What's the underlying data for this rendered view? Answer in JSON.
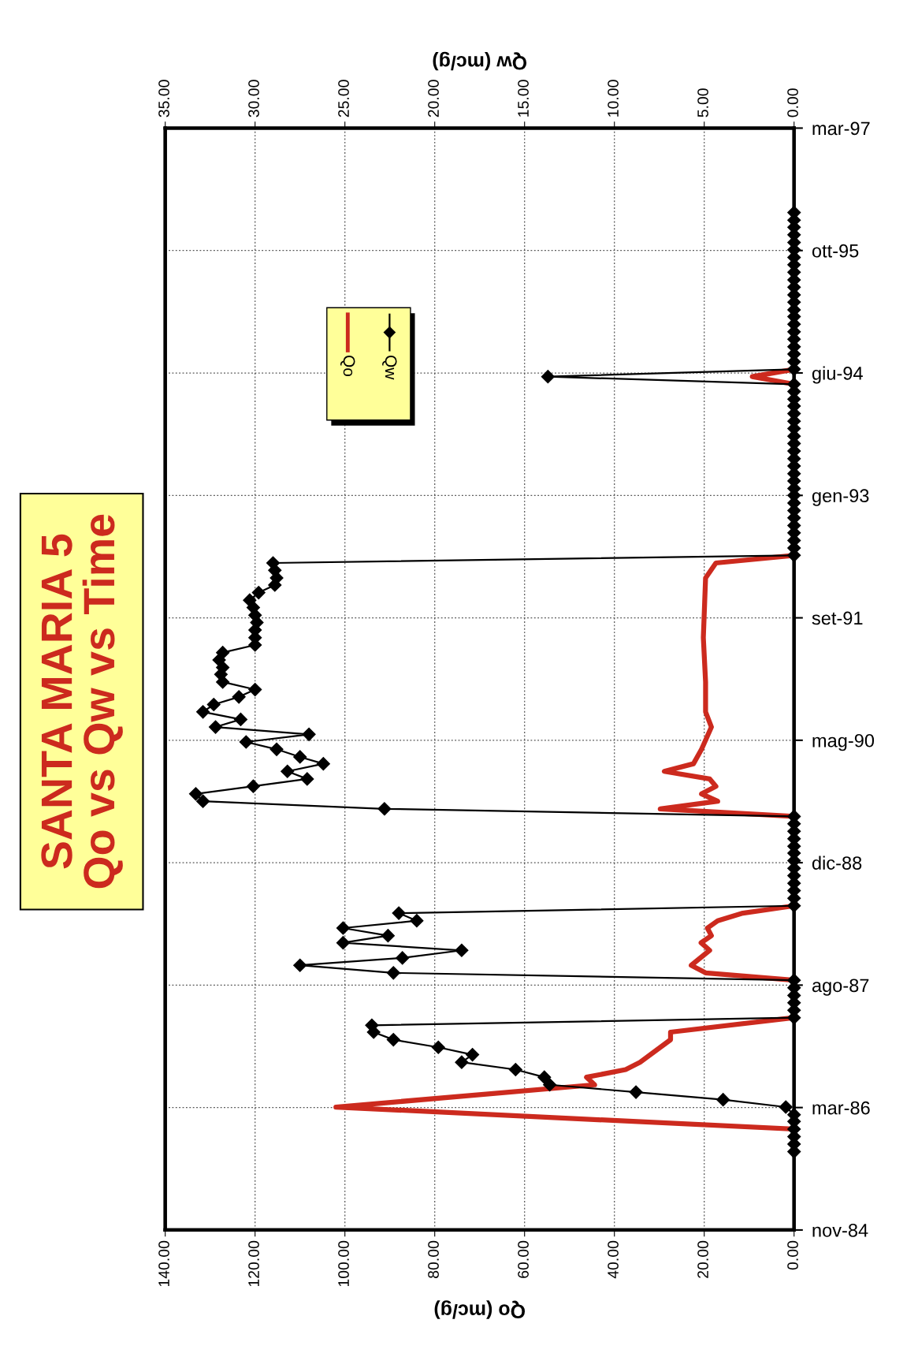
{
  "chart_data": {
    "type": "line",
    "orientation": "horizontal",
    "title": "SANTA MARIA 5\nQo vs Qw vs Time",
    "xlabel": "Qo (mc/g)",
    "x2label": "Qw (mc/g)",
    "ylim": [
      "1984-11-15",
      "1997-03-12"
    ],
    "yticks": [
      {
        "value": "1984-11-15",
        "label": "nov-84"
      },
      {
        "value": "1986-03-30",
        "label": "mar-86"
      },
      {
        "value": "1987-08-12",
        "label": "ago-87"
      },
      {
        "value": "1988-12-24",
        "label": "dic-88"
      },
      {
        "value": "1990-05-08",
        "label": "mag-90"
      },
      {
        "value": "1991-09-20",
        "label": "set-91"
      },
      {
        "value": "1993-02-01",
        "label": "gen-93"
      },
      {
        "value": "1994-06-16",
        "label": "giu-94"
      },
      {
        "value": "1995-10-29",
        "label": "ott-95"
      },
      {
        "value": "1997-03-12",
        "label": "mar-97"
      }
    ],
    "xlim": [
      140,
      0
    ],
    "xticks": [
      {
        "value": 0,
        "label": "0.00"
      },
      {
        "value": 20,
        "label": "20.00"
      },
      {
        "value": 40,
        "label": "40.00"
      },
      {
        "value": 60,
        "label": "60.00"
      },
      {
        "value": 80,
        "label": "80.00"
      },
      {
        "value": 100,
        "label": "100.00"
      },
      {
        "value": 120,
        "label": "120.00"
      },
      {
        "value": 140,
        "label": "140.00"
      }
    ],
    "x2lim": [
      35,
      0
    ],
    "x2ticks": [
      {
        "value": 0,
        "label": "0.00"
      },
      {
        "value": 5,
        "label": "5.00"
      },
      {
        "value": 10,
        "label": "10.00"
      },
      {
        "value": 15,
        "label": "15.00"
      },
      {
        "value": 20,
        "label": "20.00"
      },
      {
        "value": 25,
        "label": "25.00"
      },
      {
        "value": 30,
        "label": "30.00"
      },
      {
        "value": 35,
        "label": "35.00"
      }
    ],
    "grid": true,
    "legend": "top left",
    "line_style": "solid",
    "series": [
      {
        "name": "Qo",
        "color": "#cc2a1e",
        "marker": "none",
        "x": [
          "1986-01",
          "1986-04",
          "1986-07",
          "1986-08",
          "1986-09",
          "1986-10",
          "1987-01",
          "1987-02",
          "1987-04",
          "1987-09",
          "1987-10",
          "1987-11",
          "1988-01",
          "1988-02",
          "1988-03",
          "1988-04",
          "1988-05",
          "1988-06",
          "1988-07",
          "1989-07",
          "1989-08",
          "1989-09",
          "1989-10",
          "1989-11",
          "1989-12",
          "1990-01",
          "1990-02",
          "1990-04",
          "1990-07",
          "1990-09",
          "1991-01",
          "1991-07",
          "1992-03",
          "1992-05",
          "1992-06",
          "1994-05",
          "1994-06",
          "1994-07"
        ],
        "values": [
          0,
          102,
          44.4,
          46.2,
          37.5,
          34.3,
          27.5,
          27.5,
          0,
          0,
          19.7,
          22.9,
          18.8,
          20.7,
          18.4,
          19.3,
          17.0,
          11.4,
          0,
          0,
          29.8,
          17.0,
          20.6,
          17.4,
          18.8,
          28.9,
          22.4,
          20.6,
          18.4,
          19.7,
          19.7,
          20.2,
          19.7,
          17.4,
          0,
          0,
          9.3,
          0
        ]
      },
      {
        "name": "Qw",
        "color": "#000000",
        "marker": "diamond",
        "axis": "x2",
        "x": [
          "1985-10",
          "1985-11",
          "1985-12",
          "1986-01",
          "1986-02",
          "1986-03",
          "1986-04",
          "1986-05",
          "1986-06",
          "1986-07",
          "1986-08",
          "1986-09",
          "1986-10",
          "1986-11",
          "1986-12",
          "1987-01",
          "1987-02",
          "1987-03",
          "1987-04",
          "1987-05",
          "1987-06",
          "1987-07",
          "1987-08",
          "1987-09",
          "1987-10",
          "1987-11",
          "1987-12",
          "1988-01",
          "1988-02",
          "1988-03",
          "1988-04",
          "1988-05",
          "1988-06",
          "1988-07",
          "1988-08",
          "1988-09",
          "1988-10",
          "1988-11",
          "1988-12",
          "1989-01",
          "1989-02",
          "1989-03",
          "1989-04",
          "1989-05",
          "1989-06",
          "1989-07",
          "1989-08",
          "1989-09",
          "1989-10",
          "1989-11",
          "1989-12",
          "1990-01",
          "1990-02",
          "1990-03",
          "1990-04",
          "1990-05",
          "1990-06",
          "1990-07",
          "1990-08",
          "1990-09",
          "1990-10",
          "1990-11",
          "1990-12",
          "1991-01",
          "1991-02",
          "1991-03",
          "1991-04",
          "1991-05",
          "1991-06",
          "1991-07",
          "1991-08",
          "1991-09",
          "1991-10",
          "1991-11",
          "1991-12",
          "1992-01",
          "1992-02",
          "1992-03",
          "1992-04",
          "1992-05",
          "1992-06",
          "1992-07",
          "1992-08",
          "1992-09",
          "1992-10",
          "1992-11",
          "1992-12",
          "1993-01",
          "1993-02",
          "1993-03",
          "1993-04",
          "1993-05",
          "1993-06",
          "1993-07",
          "1993-08",
          "1993-09",
          "1993-10",
          "1993-11",
          "1993-12",
          "1994-01",
          "1994-02",
          "1994-03",
          "1994-04",
          "1994-05",
          "1994-06",
          "1994-07",
          "1994-08",
          "1994-09",
          "1994-10",
          "1994-11",
          "1994-12",
          "1995-01",
          "1995-02",
          "1995-03",
          "1995-04",
          "1995-05",
          "1995-06",
          "1995-07",
          "1995-08",
          "1995-09",
          "1995-10",
          "1995-11",
          "1995-12",
          "1996-01",
          "1996-02",
          "1996-03",
          "1996-04"
        ],
        "values": [
          0,
          0,
          0,
          0,
          0,
          0,
          0.46,
          3.95,
          8.8,
          13.6,
          13.9,
          15.5,
          18.5,
          17.9,
          19.8,
          22.3,
          23.4,
          23.5,
          0,
          0,
          0,
          0,
          0,
          0,
          22.3,
          27.5,
          21.8,
          18.5,
          25.1,
          22.6,
          25.1,
          21.0,
          22.0,
          0,
          0,
          0,
          0,
          0,
          0,
          0,
          0,
          0,
          0,
          0,
          0,
          0,
          22.8,
          32.9,
          33.3,
          30.1,
          27.1,
          28.2,
          26.2,
          27.5,
          28.8,
          30.5,
          27.0,
          32.2,
          30.8,
          32.9,
          32.3,
          30.9,
          30.0,
          31.8,
          31.9,
          31.8,
          32.0,
          31.8,
          30.0,
          30.0,
          30.0,
          29.9,
          30.0,
          30.1,
          30.3,
          29.8,
          28.9,
          28.8,
          28.9,
          29.0,
          0,
          0,
          0,
          0,
          0,
          0,
          0,
          0,
          0,
          0,
          0,
          0,
          0,
          0,
          0,
          0,
          0,
          0,
          0,
          0,
          0,
          0,
          0,
          0,
          13.7,
          0,
          0,
          0,
          0,
          0,
          0,
          0,
          0,
          0,
          0,
          0,
          0,
          0,
          0,
          0,
          0,
          0,
          0,
          0,
          0,
          0,
          0
        ]
      }
    ]
  }
}
